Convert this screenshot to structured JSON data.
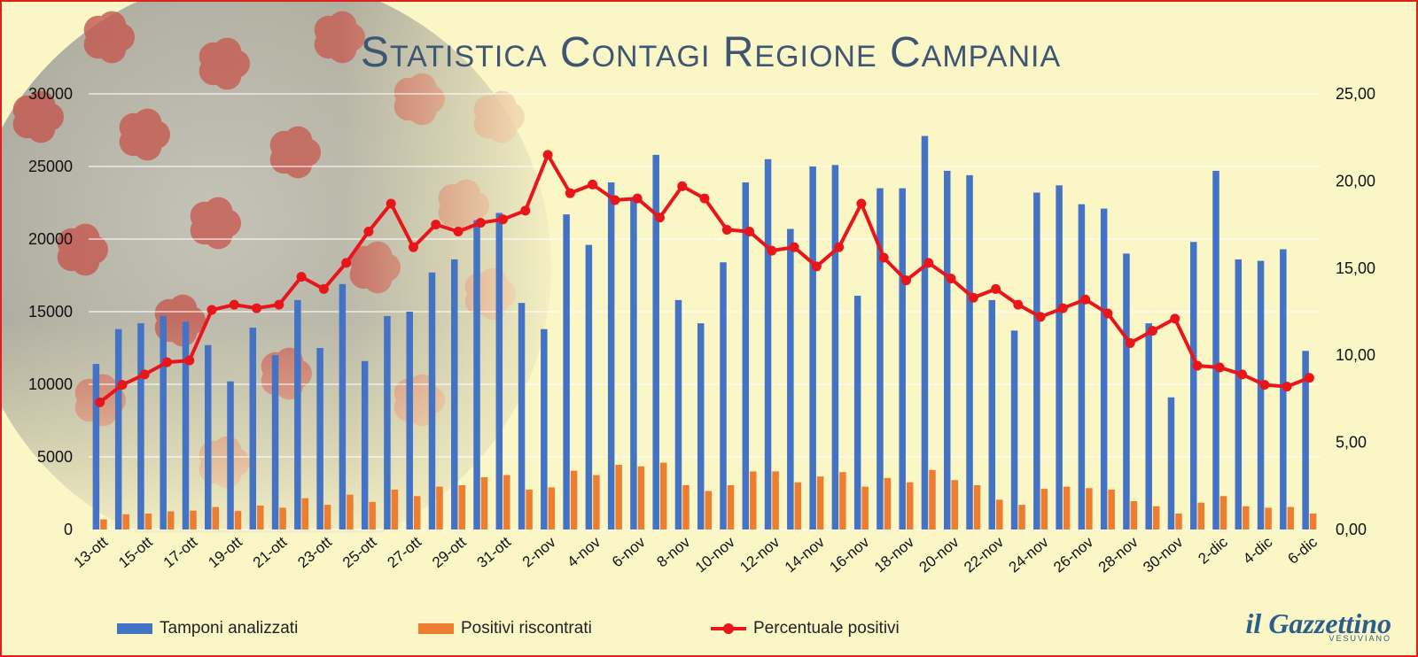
{
  "chart_data": {
    "type": "bar",
    "title": "Statistica Contagi Regione Campania",
    "categories": [
      "13-ott",
      "14-ott",
      "15-ott",
      "16-ott",
      "17-ott",
      "18-ott",
      "19-ott",
      "20-ott",
      "21-ott",
      "22-ott",
      "23-ott",
      "24-ott",
      "25-ott",
      "26-ott",
      "27-ott",
      "28-ott",
      "29-ott",
      "30-ott",
      "31-ott",
      "1-nov",
      "2-nov",
      "3-nov",
      "4-nov",
      "5-nov",
      "6-nov",
      "7-nov",
      "8-nov",
      "9-nov",
      "10-nov",
      "11-nov",
      "12-nov",
      "13-nov",
      "14-nov",
      "15-nov",
      "16-nov",
      "17-nov",
      "18-nov",
      "19-nov",
      "20-nov",
      "21-nov",
      "22-nov",
      "23-nov",
      "24-nov",
      "25-nov",
      "26-nov",
      "27-nov",
      "28-nov",
      "29-nov",
      "30-nov",
      "1-dic",
      "2-dic",
      "3-dic",
      "4-dic",
      "5-dic",
      "6-dic"
    ],
    "x_tick_labels": [
      "13-ott",
      "15-ott",
      "17-ott",
      "19-ott",
      "21-ott",
      "23-ott",
      "25-ott",
      "27-ott",
      "29-ott",
      "31-ott",
      "2-nov",
      "4-nov",
      "6-nov",
      "8-nov",
      "10-nov",
      "12-nov",
      "14-nov",
      "16-nov",
      "18-nov",
      "20-nov",
      "22-nov",
      "24-nov",
      "26-nov",
      "28-nov",
      "30-nov",
      "2-dic",
      "4-dic",
      "6-dic"
    ],
    "y_left": {
      "ylim": [
        0,
        30000
      ],
      "ticks": [
        "0",
        "5000",
        "10000",
        "15000",
        "20000",
        "25000",
        "30000"
      ]
    },
    "y_right": {
      "ylim": [
        0,
        25
      ],
      "ticks": [
        "0,00",
        "5,00",
        "10,00",
        "15,00",
        "20,00",
        "25,00"
      ]
    },
    "grid": true,
    "legend_position": "bottom",
    "series": [
      {
        "name": "Tamponi analizzati",
        "type": "bar",
        "axis": "left",
        "color": "#4472c4",
        "values": [
          11400,
          13800,
          14200,
          14700,
          14300,
          12700,
          10200,
          13900,
          12000,
          15800,
          12500,
          16900,
          11600,
          14700,
          15000,
          17700,
          18600,
          21300,
          21800,
          15600,
          13800,
          21700,
          19600,
          23900,
          22800,
          25800,
          15800,
          14200,
          18400,
          23900,
          25500,
          20700,
          25000,
          25100,
          16100,
          23500,
          23500,
          27100,
          24700,
          24400,
          15800,
          13700,
          23200,
          23700,
          22400,
          22100,
          19000,
          14200,
          9100,
          19800,
          24700,
          18600,
          18500,
          19300,
          12300
        ]
      },
      {
        "name": "Positivi riscontrati",
        "type": "bar",
        "axis": "left",
        "color": "#ed7d31",
        "values": [
          700,
          1050,
          1100,
          1250,
          1300,
          1550,
          1270,
          1650,
          1500,
          2150,
          1700,
          2400,
          1900,
          2750,
          2300,
          2950,
          3050,
          3600,
          3750,
          2750,
          2900,
          4050,
          3750,
          4450,
          4350,
          4600,
          3050,
          2650,
          3050,
          4000,
          4000,
          3250,
          3650,
          3950,
          2950,
          3550,
          3250,
          4100,
          3400,
          3050,
          2050,
          1700,
          2800,
          2950,
          2850,
          2750,
          1950,
          1600,
          1100,
          1850,
          2300,
          1600,
          1500,
          1550,
          1100
        ]
      },
      {
        "name": "Percentuale positivi",
        "type": "line",
        "axis": "right",
        "color": "#e8151b",
        "values": [
          7.3,
          8.3,
          8.9,
          9.6,
          9.7,
          12.6,
          12.9,
          12.7,
          12.9,
          14.5,
          13.8,
          15.3,
          17.1,
          18.7,
          16.2,
          17.5,
          17.1,
          17.6,
          17.8,
          18.3,
          21.5,
          19.3,
          19.8,
          18.9,
          19.0,
          17.9,
          19.7,
          19.0,
          17.2,
          17.1,
          16.0,
          16.2,
          15.1,
          16.2,
          18.7,
          15.6,
          14.3,
          15.3,
          14.4,
          13.3,
          13.8,
          12.9,
          12.2,
          12.7,
          13.2,
          12.4,
          10.7,
          11.4,
          12.1,
          9.4,
          9.3,
          8.9,
          8.3,
          8.2,
          8.7
        ]
      }
    ]
  },
  "legend": {
    "items": [
      {
        "label": "Tamponi analizzati",
        "color": "#4472c4"
      },
      {
        "label": "Positivi riscontrati",
        "color": "#ed7d31"
      },
      {
        "label": "Percentuale positivi",
        "color": "#e8151b"
      }
    ]
  },
  "logo": {
    "main": "il Gazzettino",
    "sub": "VESUVIANO"
  },
  "colors": {
    "background": "#fbf6c6",
    "border": "#e0201c",
    "title": "#3e5674",
    "grid": "#ffffff",
    "virus_petal": "#c35a54",
    "virus_body": "#9a9a94"
  }
}
